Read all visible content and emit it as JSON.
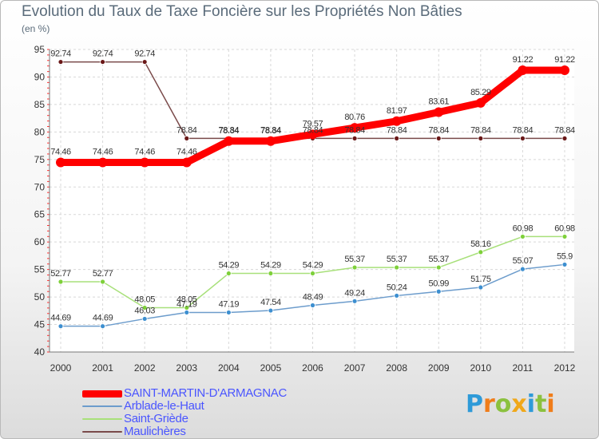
{
  "header": {
    "title": "Evolution du Taux de Taxe Foncière sur les Propriétés Non Bâties",
    "unit": "(en %)"
  },
  "brand": {
    "logo_letters": [
      "P",
      "r",
      "o",
      "x",
      "i",
      "t",
      "i"
    ],
    "logo_colors": [
      "#2e9ad8",
      "#f07d1a",
      "#8bc13f",
      "#f0a81a",
      "#2e9ad8",
      "#8bc13f",
      "#f07d1a"
    ]
  },
  "chart_data": {
    "type": "line",
    "title": "Evolution du Taux de Taxe Foncière sur les Propriétés Non Bâties",
    "ylabel": "(en %)",
    "xlabel": "",
    "ylim": [
      40,
      95
    ],
    "yticks": [
      40,
      45,
      50,
      55,
      60,
      65,
      70,
      75,
      80,
      85,
      90,
      95
    ],
    "grid": true,
    "legend_position": "bottom-left",
    "x": [
      "2000",
      "2001",
      "2002",
      "2003",
      "2004",
      "2005",
      "2006",
      "2007",
      "2008",
      "2009",
      "2010",
      "2011",
      "2012"
    ],
    "series": [
      {
        "name": "SAINT-MARTIN-D'ARMAGNAC",
        "color": "#ff0000",
        "marker_color": "#ff0000",
        "values": [
          74.46,
          74.46,
          74.46,
          74.46,
          78.34,
          78.34,
          79.57,
          80.76,
          81.97,
          83.61,
          85.29,
          91.22,
          91.22
        ],
        "labels": [
          "74.46",
          "74.46",
          "74.46",
          "74.46",
          "78.34",
          "78.34",
          "79.57",
          "80.76",
          "81.97",
          "83.61",
          "85.29",
          "91.22",
          "91.22"
        ]
      },
      {
        "name": "Arblade-le-Haut",
        "color": "#6c9ccc",
        "marker_color": "#3d8fd0",
        "values": [
          44.69,
          44.69,
          46.03,
          47.19,
          47.19,
          47.54,
          48.49,
          49.24,
          50.24,
          50.99,
          51.75,
          55.07,
          55.9
        ],
        "labels": [
          "44.69",
          "44.69",
          "46.03",
          "47.19",
          "47.19",
          "47.54",
          "48.49",
          "49.24",
          "50.24",
          "50.99",
          "51.75",
          "55.07",
          "55.9"
        ]
      },
      {
        "name": "Saint-Griède",
        "color": "#a8e07a",
        "marker_color": "#7ed03a",
        "values": [
          52.77,
          52.77,
          48.05,
          48.05,
          54.29,
          54.29,
          54.29,
          55.37,
          55.37,
          55.37,
          58.16,
          60.98,
          60.98
        ],
        "labels": [
          "52.77",
          "52.77",
          "48.05",
          "48.05",
          "54.29",
          "54.29",
          "54.29",
          "55.37",
          "55.37",
          "55.37",
          "58.16",
          "60.98",
          "60.98"
        ]
      },
      {
        "name": "Maulichères",
        "color": "#7a4a4a",
        "marker_color": "#6a1818",
        "values": [
          92.74,
          92.74,
          92.74,
          78.84,
          78.84,
          78.84,
          78.84,
          78.84,
          78.84,
          78.84,
          78.84,
          78.84,
          78.84
        ],
        "labels": [
          "92.74",
          "92.74",
          "92.74",
          "78.84",
          "78.84",
          "78.84",
          "78.84",
          "78.84",
          "78.84",
          "78.84",
          "78.84",
          "78.84",
          "78.84"
        ]
      }
    ]
  }
}
